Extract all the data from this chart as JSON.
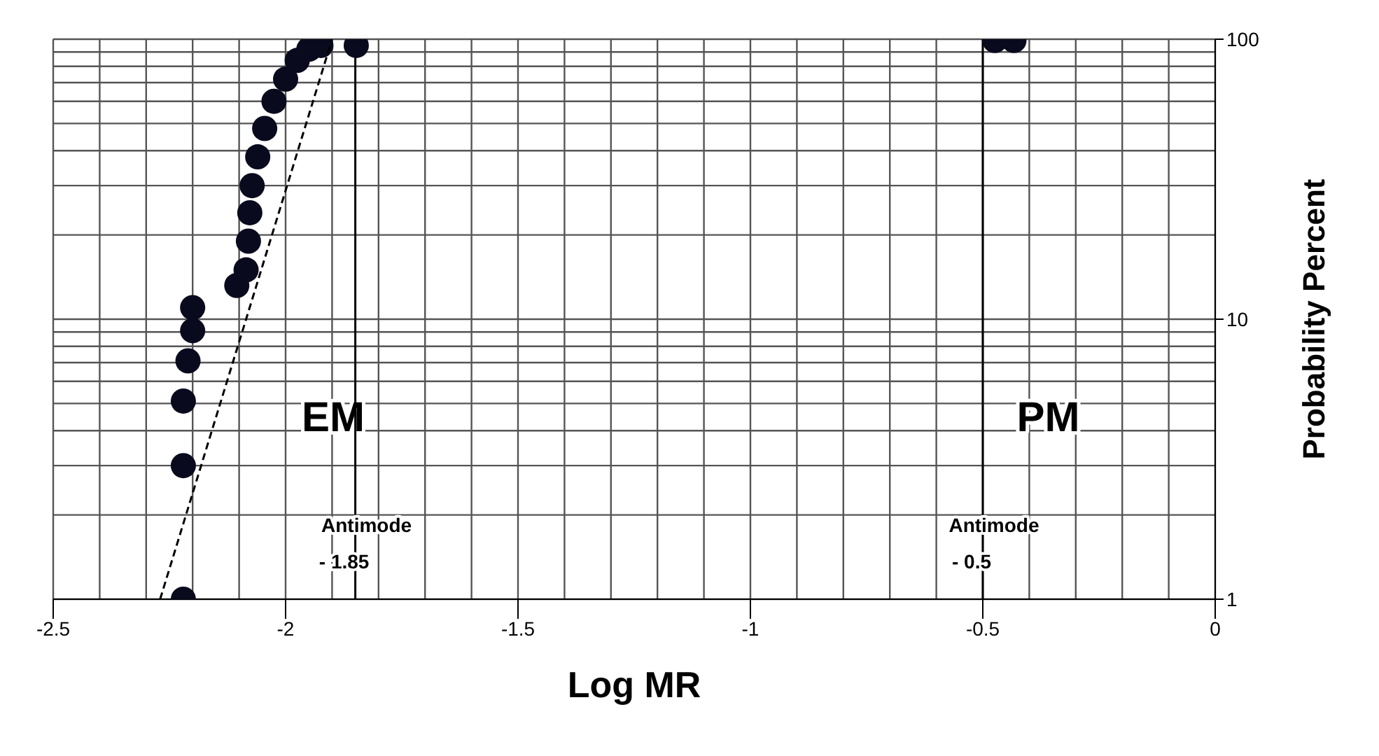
{
  "chart_data": {
    "type": "scatter",
    "xlabel": "Log MR",
    "ylabel": "Probability Percent",
    "xlim": [
      -2.5,
      0
    ],
    "xticks": [
      -2.5,
      -2,
      -1.5,
      -1,
      -0.5,
      0
    ],
    "ylim": [
      1,
      100
    ],
    "yticks": [
      1,
      10,
      100
    ],
    "log": "y",
    "grid": true,
    "series": [
      {
        "color": "#0a0a1e",
        "marker": "circle",
        "x": [
          -2.22,
          -2.22,
          -2.22,
          -2.21,
          -2.2,
          -2.2,
          -2.105,
          -2.085,
          -2.08,
          -2.077,
          -2.072,
          -2.06,
          -2.045,
          -2.025,
          -2.0,
          -1.975,
          -1.95,
          -1.924,
          -1.848,
          -0.474,
          -0.433
        ],
        "values": [
          1,
          3,
          5.1,
          7.1,
          9.1,
          11,
          13.2,
          15,
          19,
          24,
          30,
          38,
          48,
          60,
          72,
          84,
          92,
          95,
          95,
          99,
          99
        ]
      },
      {
        "type": "line",
        "color": "#000000",
        "marker": "none",
        "line_style": "dashed",
        "x": [
          -2.27,
          -1.9
        ],
        "values": [
          1,
          100
        ]
      }
    ],
    "ref_lines": [
      {
        "axis": "x",
        "value": -1.85,
        "label": "Antimode\n- 1.85",
        "color": "#000000"
      },
      {
        "axis": "x",
        "value": -0.5,
        "label": "Antimode\n- 0.5",
        "color": "#000000"
      }
    ],
    "annotations": [
      "EM",
      "PM"
    ]
  }
}
